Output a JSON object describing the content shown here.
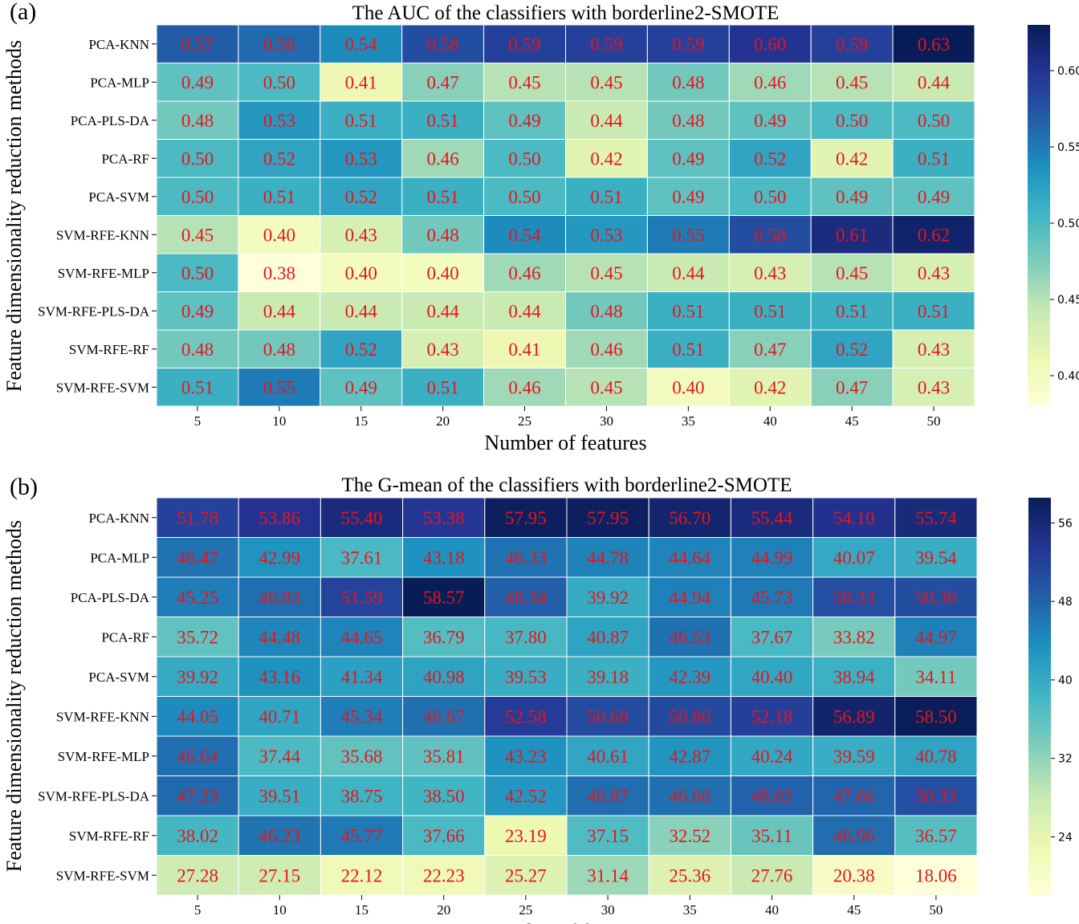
{
  "chart_data": [
    {
      "type": "heatmap",
      "panel_label": "(a)",
      "title": "The AUC of the classifiers with borderline2-SMOTE",
      "xlabel": "Number of features",
      "ylabel": "Feature dimensionality reduction methods",
      "x_categories": [
        "5",
        "10",
        "15",
        "20",
        "25",
        "30",
        "35",
        "40",
        "45",
        "50"
      ],
      "y_categories": [
        "PCA-KNN",
        "PCA-MLP",
        "PCA-PLS-DA",
        "PCA-RF",
        "PCA-SVM",
        "SVM-RFE-KNN",
        "SVM-RFE-MLP",
        "SVM-RFE-PLS-DA",
        "SVM-RFE-RF",
        "SVM-RFE-SVM"
      ],
      "values": [
        [
          "0.57",
          "0.56",
          "0.54",
          "0.58",
          "0.59",
          "0.59",
          "0.59",
          "0.60",
          "0.59",
          "0.63"
        ],
        [
          "0.49",
          "0.50",
          "0.41",
          "0.47",
          "0.45",
          "0.45",
          "0.48",
          "0.46",
          "0.45",
          "0.44"
        ],
        [
          "0.48",
          "0.53",
          "0.51",
          "0.51",
          "0.49",
          "0.44",
          "0.48",
          "0.49",
          "0.50",
          "0.50"
        ],
        [
          "0.50",
          "0.52",
          "0.53",
          "0.46",
          "0.50",
          "0.42",
          "0.49",
          "0.52",
          "0.42",
          "0.51"
        ],
        [
          "0.50",
          "0.51",
          "0.52",
          "0.51",
          "0.50",
          "0.51",
          "0.49",
          "0.50",
          "0.49",
          "0.49"
        ],
        [
          "0.45",
          "0.40",
          "0.43",
          "0.48",
          "0.54",
          "0.53",
          "0.55",
          "0.58",
          "0.61",
          "0.62"
        ],
        [
          "0.50",
          "0.38",
          "0.40",
          "0.40",
          "0.46",
          "0.45",
          "0.44",
          "0.43",
          "0.45",
          "0.43"
        ],
        [
          "0.49",
          "0.44",
          "0.44",
          "0.44",
          "0.44",
          "0.48",
          "0.51",
          "0.51",
          "0.51",
          "0.51"
        ],
        [
          "0.48",
          "0.48",
          "0.52",
          "0.43",
          "0.41",
          "0.46",
          "0.51",
          "0.47",
          "0.52",
          "0.43"
        ],
        [
          "0.51",
          "0.55",
          "0.49",
          "0.51",
          "0.46",
          "0.45",
          "0.40",
          "0.42",
          "0.47",
          "0.43"
        ]
      ],
      "color_range": [
        0.38,
        0.63
      ],
      "colorbar_ticks": [
        "0.40",
        "0.45",
        "0.50",
        "0.55",
        "0.60"
      ],
      "colormap": "YlGnBu",
      "annotation_color": "#e8141c"
    },
    {
      "type": "heatmap",
      "panel_label": "(b)",
      "title": "The G-mean of the classifiers with borderline2-SMOTE",
      "xlabel": "Number of features",
      "ylabel": "Feature dimensionality reduction methods",
      "x_categories": [
        "5",
        "10",
        "15",
        "20",
        "25",
        "30",
        "35",
        "40",
        "45",
        "50"
      ],
      "y_categories": [
        "PCA-KNN",
        "PCA-MLP",
        "PCA-PLS-DA",
        "PCA-RF",
        "PCA-SVM",
        "SVM-RFE-KNN",
        "SVM-RFE-MLP",
        "SVM-RFE-PLS-DA",
        "SVM-RFE-RF",
        "SVM-RFE-SVM"
      ],
      "values": [
        [
          "51.78",
          "53.86",
          "55.40",
          "53.38",
          "57.95",
          "57.95",
          "56.70",
          "55.44",
          "54.10",
          "55.74"
        ],
        [
          "46.47",
          "42.99",
          "37.61",
          "43.18",
          "46.33",
          "44.78",
          "44.64",
          "44.99",
          "40.07",
          "39.54"
        ],
        [
          "45.25",
          "46.83",
          "51.59",
          "58.57",
          "48.34",
          "39.92",
          "44.94",
          "45.73",
          "50.33",
          "50.36"
        ],
        [
          "35.72",
          "44.48",
          "44.65",
          "36.79",
          "37.80",
          "40.87",
          "46.53",
          "37.67",
          "33.82",
          "44.97"
        ],
        [
          "39.92",
          "43.16",
          "41.34",
          "40.98",
          "39.53",
          "39.18",
          "42.39",
          "40.40",
          "38.94",
          "34.11"
        ],
        [
          "44.05",
          "40.71",
          "45.34",
          "46.67",
          "52.58",
          "50.68",
          "50.86",
          "52.18",
          "56.89",
          "58.50"
        ],
        [
          "46.64",
          "37.44",
          "35.68",
          "35.81",
          "43.23",
          "40.61",
          "42.87",
          "40.24",
          "39.59",
          "40.78"
        ],
        [
          "47.23",
          "39.51",
          "38.75",
          "38.50",
          "42.52",
          "46.87",
          "46.66",
          "48.02",
          "47.66",
          "50.33"
        ],
        [
          "38.02",
          "46.23",
          "45.77",
          "37.66",
          "23.19",
          "37.15",
          "32.52",
          "35.11",
          "46.96",
          "36.57"
        ],
        [
          "27.28",
          "27.15",
          "22.12",
          "22.23",
          "25.27",
          "31.14",
          "25.36",
          "27.76",
          "20.38",
          "18.06"
        ]
      ],
      "color_range": [
        18.06,
        58.57
      ],
      "colorbar_ticks": [
        "24",
        "32",
        "40",
        "48",
        "56"
      ],
      "colormap": "YlGnBu",
      "annotation_color": "#e8141c"
    }
  ]
}
